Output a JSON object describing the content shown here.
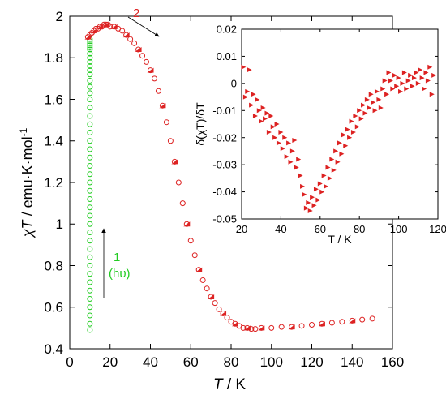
{
  "chart_data": [
    {
      "type": "scatter",
      "xlabel_italic": "T",
      "xlabel_unit": " / K",
      "ylabel_italic": "χT",
      "ylabel_unit": " / emu·K·mol",
      "ylabel_sup": "-1",
      "xlim": [
        0,
        160
      ],
      "ylim": [
        0.4,
        2.0
      ],
      "x_ticks": [
        0,
        20,
        40,
        60,
        80,
        100,
        120,
        140,
        160
      ],
      "y_ticks": [
        0.4,
        0.6,
        0.8,
        1,
        1.2,
        1.4,
        1.6,
        1.8,
        2
      ],
      "grid": false,
      "annotations": [
        {
          "text": "1",
          "color": "#22cc22"
        },
        {
          "text": "(hυ)",
          "color": "#22cc22"
        },
        {
          "text": "2",
          "color": "#dd2222"
        }
      ],
      "series": [
        {
          "color": "#22cc22",
          "marker": "open-circle",
          "x": [
            10,
            10,
            10,
            10,
            10,
            10,
            10,
            10,
            10,
            10,
            10,
            10,
            10,
            10,
            10,
            10,
            10,
            10,
            10,
            10,
            10,
            10,
            10,
            10,
            10,
            10,
            10,
            10,
            10,
            10,
            10,
            10,
            10,
            10,
            10,
            10,
            10,
            10,
            10,
            10,
            10,
            10,
            10,
            10
          ],
          "y": [
            0.49,
            0.52,
            0.56,
            0.6,
            0.64,
            0.68,
            0.72,
            0.76,
            0.8,
            0.84,
            0.88,
            0.92,
            0.96,
            1.0,
            1.04,
            1.08,
            1.12,
            1.16,
            1.2,
            1.24,
            1.28,
            1.32,
            1.36,
            1.4,
            1.44,
            1.48,
            1.52,
            1.56,
            1.6,
            1.63,
            1.66,
            1.69,
            1.72,
            1.74,
            1.76,
            1.78,
            1.8,
            1.82,
            1.84,
            1.85,
            1.86,
            1.87,
            1.88,
            1.89
          ]
        },
        {
          "color": "#dd2222",
          "marker": "open-circle",
          "x": [
            9,
            10,
            11,
            12,
            13,
            14,
            15,
            16,
            17,
            18,
            19,
            20,
            22,
            24,
            26,
            28,
            30,
            32,
            34,
            36,
            38,
            40,
            42,
            44,
            46,
            48,
            50,
            52,
            54,
            56,
            58,
            60,
            62,
            64,
            66,
            68,
            70,
            72,
            74,
            76,
            78,
            80,
            82,
            84,
            86,
            88,
            90,
            92,
            95,
            100,
            105,
            110,
            115,
            120,
            125,
            130,
            135,
            140,
            145,
            150
          ],
          "y": [
            1.9,
            1.91,
            1.92,
            1.93,
            1.94,
            1.94,
            1.95,
            1.95,
            1.96,
            1.96,
            1.96,
            1.95,
            1.95,
            1.94,
            1.93,
            1.91,
            1.89,
            1.87,
            1.84,
            1.81,
            1.78,
            1.74,
            1.7,
            1.64,
            1.57,
            1.49,
            1.4,
            1.3,
            1.2,
            1.1,
            1.0,
            0.92,
            0.85,
            0.78,
            0.73,
            0.69,
            0.65,
            0.62,
            0.59,
            0.57,
            0.55,
            0.53,
            0.52,
            0.51,
            0.5,
            0.5,
            0.495,
            0.495,
            0.5,
            0.5,
            0.505,
            0.505,
            0.51,
            0.515,
            0.52,
            0.525,
            0.53,
            0.535,
            0.54,
            0.545
          ]
        }
      ]
    },
    {
      "type": "scatter",
      "xlabel": "T / K",
      "ylabel": "δ(χT)/δT",
      "xlim": [
        20,
        120
      ],
      "ylim": [
        -0.05,
        0.02
      ],
      "x_ticks": [
        20,
        40,
        60,
        80,
        100,
        120
      ],
      "y_ticks": [
        -0.05,
        -0.04,
        -0.03,
        -0.02,
        -0.01,
        0,
        0.01,
        0.02
      ],
      "y_tick_labels": [
        "-0.05",
        "-0.04",
        "-0.03",
        "-0.02",
        "-0.01",
        "0",
        "0.01",
        "0.02"
      ],
      "grid": false,
      "series": [
        {
          "color": "#dd2222",
          "marker": "triangle",
          "x": [
            21,
            22,
            23,
            24,
            25,
            26,
            27,
            28,
            29,
            30,
            31,
            32,
            33,
            34,
            35,
            36,
            37,
            38,
            39,
            40,
            41,
            42,
            43,
            44,
            45,
            46,
            47,
            48,
            49,
            50,
            51,
            52,
            53,
            54,
            55,
            56,
            57,
            58,
            59,
            60,
            61,
            62,
            63,
            64,
            65,
            66,
            67,
            68,
            69,
            70,
            71,
            72,
            73,
            74,
            75,
            76,
            77,
            78,
            79,
            80,
            81,
            82,
            83,
            84,
            85,
            86,
            87,
            88,
            89,
            90,
            91,
            92,
            93,
            94,
            95,
            96,
            97,
            98,
            99,
            100,
            101,
            102,
            103,
            104,
            105,
            106,
            107,
            108,
            109,
            110,
            111,
            112,
            113,
            114,
            115,
            116,
            117,
            118
          ],
          "y": [
            0.006,
            -0.005,
            -0.003,
            0.005,
            -0.008,
            -0.004,
            -0.012,
            -0.006,
            -0.01,
            -0.014,
            -0.009,
            -0.013,
            -0.011,
            -0.018,
            -0.012,
            -0.016,
            -0.02,
            -0.015,
            -0.022,
            -0.018,
            -0.024,
            -0.02,
            -0.027,
            -0.022,
            -0.029,
            -0.025,
            -0.021,
            -0.031,
            -0.028,
            -0.034,
            -0.038,
            -0.041,
            -0.046,
            -0.044,
            -0.047,
            -0.042,
            -0.045,
            -0.039,
            -0.043,
            -0.037,
            -0.04,
            -0.034,
            -0.038,
            -0.031,
            -0.035,
            -0.028,
            -0.032,
            -0.025,
            -0.029,
            -0.022,
            -0.026,
            -0.019,
            -0.023,
            -0.017,
            -0.02,
            -0.014,
            -0.018,
            -0.012,
            -0.016,
            -0.01,
            -0.013,
            -0.008,
            -0.011,
            -0.006,
            -0.009,
            -0.004,
            -0.007,
            -0.01,
            -0.003,
            -0.006,
            -0.009,
            -0.002,
            0.001,
            -0.004,
            0.004,
            0.001,
            -0.002,
            0.003,
            -0.001,
            0.002,
            -0.003,
            0.0,
            0.004,
            -0.002,
            0.001,
            0.003,
            -0.001,
            0.002,
            0.004,
            0.0,
            0.005,
            0.002,
            -0.002,
            0.004,
            0.001,
            0.006,
            -0.004,
            0.003
          ]
        }
      ]
    }
  ]
}
